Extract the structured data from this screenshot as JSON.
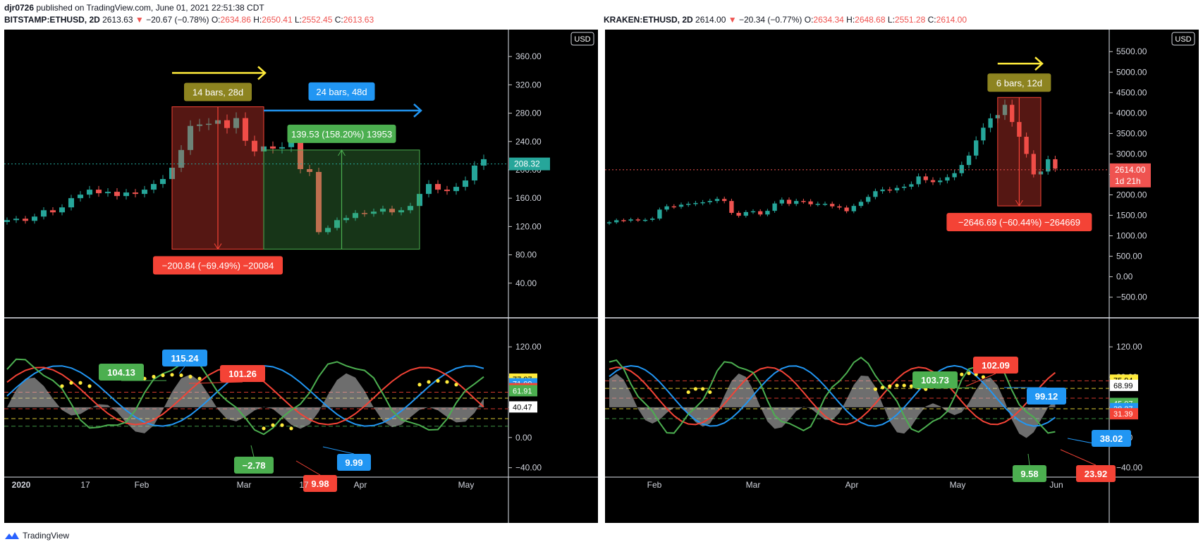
{
  "header": {
    "user": "djr0726",
    "published": "published on TradingView.com, June 01, 2021 22:51:38 CDT"
  },
  "footer": {
    "brand": "TradingView"
  },
  "colors": {
    "up": "#26a69a",
    "down": "#ef5350",
    "green": "#4caf50",
    "red": "#f44336",
    "blue": "#2196f3",
    "yellow": "#ffeb3b",
    "olive": "#8d8420",
    "gray": "#9e9e9e"
  },
  "charts": [
    {
      "ticker": {
        "symbol": "BITSTAMP:ETHUSD, 2D",
        "last": "2613.63",
        "change": "−20.67 (−0.78%)",
        "o_label": "O:",
        "o": "2634.86",
        "h_label": "H:",
        "h": "2650.41",
        "l_label": "L:",
        "l": "2552.45",
        "c_label": "C:",
        "c": "2613.63"
      },
      "currency": "USD",
      "price_axis_labels": [
        "360.00",
        "320.00",
        "280.00",
        "240.00",
        "200.00",
        "160.00",
        "120.00",
        "80.00",
        "40.00"
      ],
      "price_axis_values": [
        360,
        320,
        280,
        240,
        200,
        160,
        120,
        80,
        40
      ],
      "price_range": [
        0,
        390
      ],
      "last_price_label": "208.32",
      "last_price_value": 208.32,
      "measure_down": {
        "bars_label": "14 bars, 28d",
        "value_label": "−200.84 (−69.49%) −20084",
        "top": 289,
        "bottom": 88
      },
      "measure_up": {
        "bars_label": "24 bars, 48d",
        "value_label": "139.53 (158.20%) 13953",
        "top": 228,
        "bottom": 88
      },
      "osc_axis_labels": [
        "120.00",
        "80.00",
        "40.00",
        "0.00",
        "−40.00"
      ],
      "osc_axis_values": [
        120,
        80,
        40,
        0,
        -40
      ],
      "osc_range": [
        -45,
        150
      ],
      "osc_right_labels": [
        {
          "text": "77.27",
          "value": 77.27,
          "color": "yellow"
        },
        {
          "text": "71.09",
          "value": 71.09,
          "color": "blue"
        },
        {
          "text": "64.62",
          "value": 64.62,
          "color": "red"
        },
        {
          "text": "61.91",
          "value": 61.91,
          "color": "green"
        },
        {
          "text": "40.47",
          "value": 40.47,
          "color": "white"
        }
      ],
      "osc_levels": [
        {
          "value": 60,
          "color": "red"
        },
        {
          "value": 52,
          "color": "yellow"
        },
        {
          "value": 38,
          "color": "red"
        },
        {
          "value": 25,
          "color": "yellow"
        },
        {
          "value": 15,
          "color": "green"
        }
      ],
      "osc_callouts": [
        {
          "text": "104.13",
          "color": "green"
        },
        {
          "text": "115.24",
          "color": "blue"
        },
        {
          "text": "101.26",
          "color": "red"
        },
        {
          "text": "−2.78",
          "color": "green"
        },
        {
          "text": "9.98",
          "color": "red"
        },
        {
          "text": "9.99",
          "color": "blue"
        }
      ],
      "time_labels": [
        "2020",
        "17",
        "Feb",
        "Mar",
        "17",
        "Apr",
        "May"
      ],
      "chart_data": {
        "type": "candlestick",
        "bars": 53,
        "series": [
          {
            "name": "close",
            "values": [
              129,
              131,
              128,
              134,
              143,
              140,
              147,
              160,
              165,
              172,
              167,
              169,
              163,
              168,
              166,
              172,
              180,
              187,
              203,
              228,
              262,
              264,
              265,
              270,
              259,
              273,
              241,
              226,
              233,
              230,
              232,
              251,
              201,
              197,
              112,
              118,
              129,
              132,
              139,
              138,
              141,
              145,
              140,
              143,
              149,
              166,
              180,
              172,
              170,
              176,
              185,
              206,
              215
            ]
          }
        ]
      }
    },
    {
      "ticker": {
        "symbol": "KRAKEN:ETHUSD, 2D",
        "last": "2614.00",
        "change": "−20.34 (−0.77%)",
        "o_label": "O:",
        "o": "2634.34",
        "h_label": "H:",
        "h": "2648.68",
        "l_label": "L:",
        "l": "2551.28",
        "c_label": "C:",
        "c": "2614.00"
      },
      "currency": "USD",
      "price_axis_labels": [
        "5500.00",
        "5000.00",
        "4500.00",
        "4000.00",
        "3500.00",
        "3000.00",
        "2500.00",
        "2000.00",
        "1500.00",
        "1000.00",
        "500.00",
        "0.00",
        "−500.00"
      ],
      "price_axis_values": [
        5500,
        5000,
        4500,
        4000,
        3500,
        3000,
        2500,
        2000,
        1500,
        1000,
        500,
        0,
        -500
      ],
      "price_range": [
        -850,
        5900
      ],
      "last_price_label": "2614.00",
      "last_price_sub": "1d 21h",
      "last_price_value": 2614,
      "measure_down": {
        "bars_label": "6 bars, 12d",
        "value_label": "−2646.69 (−60.44%) −264669",
        "top": 4380,
        "bottom": 1730
      },
      "osc_axis_labels": [
        "120.00",
        "80.00",
        "40.00",
        "0.00",
        "−40.00"
      ],
      "osc_axis_values": [
        120,
        80,
        40,
        0,
        -40
      ],
      "osc_range": [
        -45,
        150
      ],
      "osc_right_labels": [
        {
          "text": "75.94",
          "value": 75.94,
          "color": "yellow"
        },
        {
          "text": "68.99",
          "value": 68.99,
          "color": "white"
        },
        {
          "text": "45.07",
          "value": 45.07,
          "color": "green"
        },
        {
          "text": "38.27",
          "value": 38.27,
          "color": "blue"
        },
        {
          "text": "31.39",
          "value": 31.39,
          "color": "red"
        }
      ],
      "osc_levels": [
        {
          "value": 75,
          "color": "red"
        },
        {
          "value": 65,
          "color": "yellow"
        },
        {
          "value": 52,
          "color": "red"
        },
        {
          "value": 38,
          "color": "yellow"
        },
        {
          "value": 25,
          "color": "green"
        }
      ],
      "osc_callouts": [
        {
          "text": "103.73",
          "color": "green"
        },
        {
          "text": "102.09",
          "color": "red"
        },
        {
          "text": "99.12",
          "color": "blue"
        },
        {
          "text": "38.02",
          "color": "blue"
        },
        {
          "text": "9.58",
          "color": "green"
        },
        {
          "text": "23.92",
          "color": "red"
        }
      ],
      "time_labels": [
        "Feb",
        "Mar",
        "Apr",
        "May",
        "Jun"
      ],
      "chart_data": {
        "type": "candlestick",
        "bars": 63,
        "series": [
          {
            "name": "close",
            "values": [
              1330,
              1380,
              1370,
              1400,
              1380,
              1390,
              1420,
              1640,
              1720,
              1710,
              1760,
              1780,
              1800,
              1820,
              1850,
              1900,
              1850,
              1560,
              1490,
              1580,
              1600,
              1520,
              1610,
              1790,
              1880,
              1780,
              1850,
              1840,
              1770,
              1780,
              1780,
              1720,
              1690,
              1600,
              1730,
              1830,
              1950,
              2090,
              2130,
              2110,
              2170,
              2200,
              2260,
              2450,
              2360,
              2310,
              2350,
              2430,
              2530,
              2730,
              2960,
              3330,
              3640,
              3870,
              3950,
              4200,
              3780,
              3420,
              3000,
              2500,
              2570,
              2870,
              2640
            ]
          }
        ]
      }
    }
  ]
}
